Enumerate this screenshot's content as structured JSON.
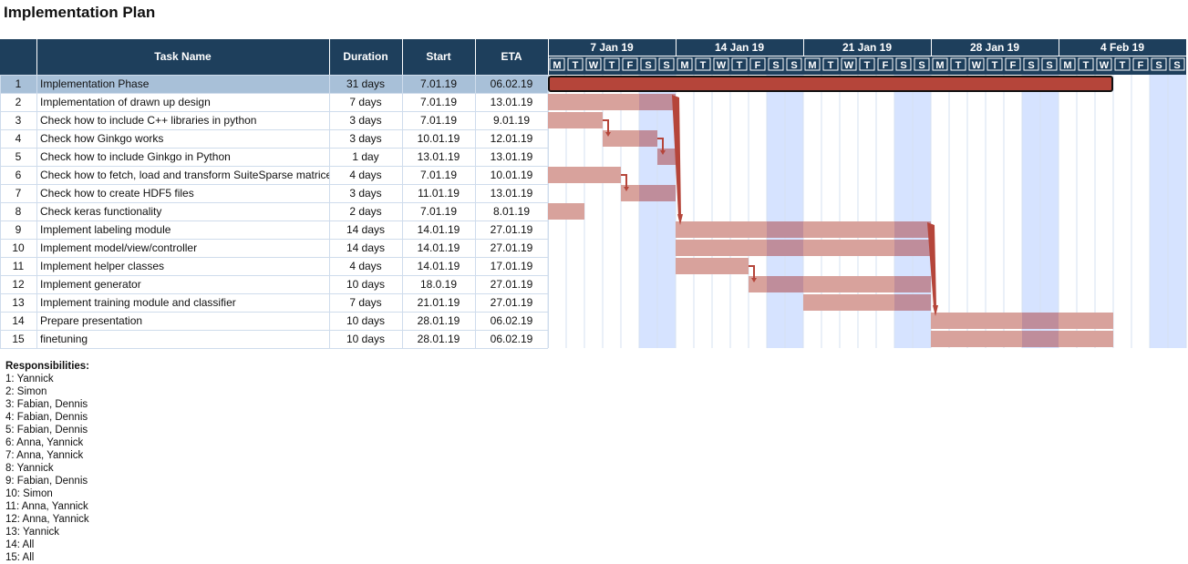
{
  "title": "Implementation Plan",
  "columns": {
    "num": "",
    "task": "Task Name",
    "duration": "Duration",
    "start": "Start",
    "eta": "ETA"
  },
  "weeks": [
    "7 Jan 19",
    "14 Jan 19",
    "21 Jan 19",
    "28 Jan 19",
    "4 Feb 19"
  ],
  "day_letters": [
    "M",
    "T",
    "W",
    "T",
    "F",
    "S",
    "S"
  ],
  "colors": {
    "header_bg": "#1e3f5c",
    "selected_row": "#a8c0d8",
    "summary_bar": "#b5453a",
    "task_bar": "#d8a29c",
    "weekend": "#d6e3ff",
    "task_bar_weekend": "#bf8d9b",
    "arrow": "#b5453a"
  },
  "responsibilities": {
    "heading": "Responsibilities:",
    "items": [
      "1: Yannick",
      "2: Simon",
      "3: Fabian, Dennis",
      "4: Fabian, Dennis",
      "5: Fabian, Dennis",
      "6: Anna, Yannick",
      "7: Anna, Yannick",
      "8: Yannick",
      "9: Fabian, Dennis",
      "10: Simon",
      "11: Anna, Yannick",
      "12: Anna, Yannick",
      "13: Yannick",
      "14: All",
      "15: All"
    ]
  },
  "chart_data": {
    "type": "gantt",
    "timeline_start": "2019-01-07",
    "timeline_days": 35,
    "tasks": [
      {
        "num": "1",
        "name": "Implementation Phase",
        "duration": "31 days",
        "start": "7.01.19",
        "eta": "06.02.19",
        "start_date": "2019-01-07",
        "end_date": "2019-02-06",
        "summary": true
      },
      {
        "num": "2",
        "name": "Implementation of drawn up design",
        "duration": "7 days",
        "start": "7.01.19",
        "eta": "13.01.19",
        "start_date": "2019-01-07",
        "end_date": "2019-01-13"
      },
      {
        "num": "3",
        "name": "Check how to include C++ libraries in python",
        "duration": "3 days",
        "start": "7.01.19",
        "eta": "9.01.19",
        "start_date": "2019-01-07",
        "end_date": "2019-01-09"
      },
      {
        "num": "4",
        "name": "Check how Ginkgo works",
        "duration": "3 days",
        "start": "10.01.19",
        "eta": "12.01.19",
        "start_date": "2019-01-10",
        "end_date": "2019-01-12"
      },
      {
        "num": "5",
        "name": "Check how to include Ginkgo in Python",
        "duration": "1 day",
        "start": "13.01.19",
        "eta": "13.01.19",
        "start_date": "2019-01-13",
        "end_date": "2019-01-13"
      },
      {
        "num": "6",
        "name": "Check how to fetch, load and transform SuiteSparse matrices",
        "duration": "4 days",
        "start": "7.01.19",
        "eta": "10.01.19",
        "start_date": "2019-01-07",
        "end_date": "2019-01-10"
      },
      {
        "num": "7",
        "name": "Check how to create HDF5 files",
        "duration": "3 days",
        "start": "11.01.19",
        "eta": "13.01.19",
        "start_date": "2019-01-11",
        "end_date": "2019-01-13"
      },
      {
        "num": "8",
        "name": "Check keras functionality",
        "duration": "2 days",
        "start": "7.01.19",
        "eta": "8.01.19",
        "start_date": "2019-01-07",
        "end_date": "2019-01-08"
      },
      {
        "num": "9",
        "name": "Implement labeling module",
        "duration": "14 days",
        "start": "14.01.19",
        "eta": "27.01.19",
        "start_date": "2019-01-14",
        "end_date": "2019-01-27"
      },
      {
        "num": "10",
        "name": "Implement model/view/controller",
        "duration": "14 days",
        "start": "14.01.19",
        "eta": "27.01.19",
        "start_date": "2019-01-14",
        "end_date": "2019-01-27"
      },
      {
        "num": "11",
        "name": "Implement helper classes",
        "duration": "4 days",
        "start": "14.01.19",
        "eta": "17.01.19",
        "start_date": "2019-01-14",
        "end_date": "2019-01-17"
      },
      {
        "num": "12",
        "name": "Implement generator",
        "duration": "10 days",
        "start": "18.0.19",
        "eta": "27.01.19",
        "start_date": "2019-01-18",
        "end_date": "2019-01-27"
      },
      {
        "num": "13",
        "name": "Implement training module and classifier",
        "duration": "7 days",
        "start": "21.01.19",
        "eta": "27.01.19",
        "start_date": "2019-01-21",
        "end_date": "2019-01-27"
      },
      {
        "num": "14",
        "name": "Prepare presentation",
        "duration": "10 days",
        "start": "28.01.19",
        "eta": "06.02.19",
        "start_date": "2019-01-28",
        "end_date": "2019-02-06"
      },
      {
        "num": "15",
        "name": "finetuning",
        "duration": "10 days",
        "start": "28.01.19",
        "eta": "06.02.19",
        "start_date": "2019-01-28",
        "end_date": "2019-02-06"
      }
    ],
    "dependencies": [
      {
        "from": "3",
        "to": "4"
      },
      {
        "from": "4",
        "to": "5"
      },
      {
        "from": "6",
        "to": "7"
      },
      {
        "from": "2",
        "to": "9"
      },
      {
        "from": "11",
        "to": "12"
      },
      {
        "from": "9",
        "to": "14"
      }
    ]
  }
}
